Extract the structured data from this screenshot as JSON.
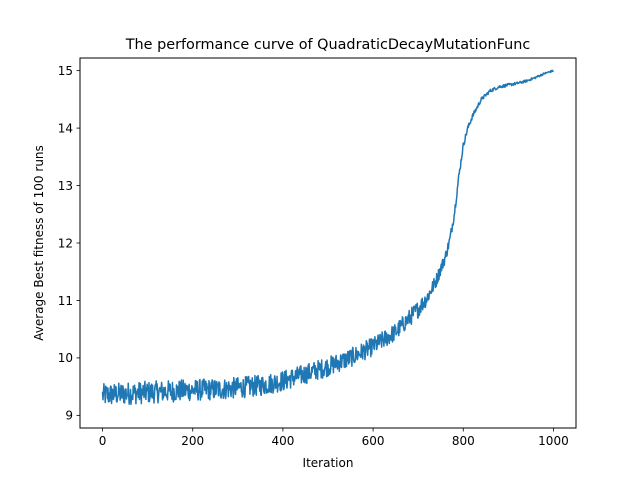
{
  "chart_data": {
    "type": "line",
    "title": "The performance curve of QuadraticDecayMutationFunc",
    "xlabel": "Iteration",
    "ylabel": "Average Best fitness of 100 runs",
    "xlim": [
      -50,
      1050
    ],
    "ylim": [
      8.78,
      15.22
    ],
    "xticks": [
      0,
      200,
      400,
      600,
      800,
      1000
    ],
    "yticks": [
      9,
      10,
      11,
      12,
      13,
      14,
      15
    ],
    "grid": false,
    "legend": "none",
    "series": [
      {
        "color": "#1f77b4",
        "anchors": [
          [
            0,
            9.35
          ],
          [
            50,
            9.38
          ],
          [
            100,
            9.4
          ],
          [
            150,
            9.42
          ],
          [
            200,
            9.44
          ],
          [
            250,
            9.45
          ],
          [
            300,
            9.48
          ],
          [
            350,
            9.52
          ],
          [
            400,
            9.6
          ],
          [
            450,
            9.72
          ],
          [
            500,
            9.85
          ],
          [
            550,
            10.0
          ],
          [
            600,
            10.2
          ],
          [
            650,
            10.45
          ],
          [
            700,
            10.85
          ],
          [
            720,
            11.05
          ],
          [
            740,
            11.35
          ],
          [
            760,
            11.75
          ],
          [
            770,
            12.05
          ],
          [
            780,
            12.5
          ],
          [
            790,
            13.15
          ],
          [
            800,
            13.7
          ],
          [
            810,
            14.0
          ],
          [
            820,
            14.2
          ],
          [
            840,
            14.5
          ],
          [
            860,
            14.65
          ],
          [
            880,
            14.72
          ],
          [
            900,
            14.75
          ],
          [
            920,
            14.78
          ],
          [
            940,
            14.82
          ],
          [
            960,
            14.88
          ],
          [
            980,
            14.95
          ],
          [
            1000,
            15.0
          ]
        ],
        "noise": [
          [
            0,
            0.2
          ],
          [
            400,
            0.18
          ],
          [
            600,
            0.16
          ],
          [
            700,
            0.15
          ],
          [
            760,
            0.1
          ],
          [
            800,
            0.05
          ],
          [
            850,
            0.03
          ],
          [
            1000,
            0.015
          ]
        ]
      }
    ]
  }
}
